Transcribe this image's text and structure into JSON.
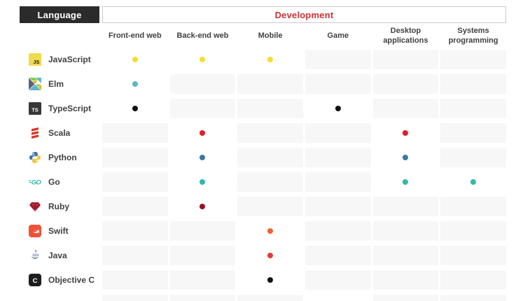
{
  "header": {
    "language_label": "Language",
    "development_label": "Development"
  },
  "colors": {
    "header_bg": "#2b2b2b",
    "header_text": "#ffffff",
    "development_text": "#cf3036",
    "development_border": "#cccccc",
    "cell_empty_bg": "#f7f7f7",
    "cell_active_bg": "#ffffff",
    "label_text": "#414042",
    "column_header_text": "#414042"
  },
  "chart_data": {
    "type": "table",
    "title": "Development",
    "row_header": "Language",
    "columns": [
      "Front-end web",
      "Back-end web",
      "Mobile",
      "Game",
      "Desktop applications",
      "Systems programming"
    ],
    "rows": [
      {
        "name": "JavaScript",
        "icon": "javascript-icon",
        "dot_color": "#f7dc30",
        "cells": [
          true,
          true,
          true,
          false,
          false,
          false
        ]
      },
      {
        "name": "Elm",
        "icon": "elm-icon",
        "dot_color": "#5fb4cb",
        "cells": [
          true,
          false,
          false,
          false,
          false,
          false
        ]
      },
      {
        "name": "TypeScript",
        "icon": "typescript-icon",
        "dot_color": "#111111",
        "cells": [
          true,
          false,
          false,
          true,
          false,
          false
        ]
      },
      {
        "name": "Scala",
        "icon": "scala-icon",
        "dot_color": "#e81c24",
        "cells": [
          false,
          true,
          false,
          false,
          true,
          false
        ]
      },
      {
        "name": "Python",
        "icon": "python-icon",
        "dot_color": "#3a78a9",
        "cells": [
          false,
          true,
          false,
          false,
          true,
          false
        ]
      },
      {
        "name": "Go",
        "icon": "go-icon",
        "dot_color": "#2ebaab",
        "cells": [
          false,
          true,
          false,
          false,
          true,
          true
        ]
      },
      {
        "name": "Ruby",
        "icon": "ruby-icon",
        "dot_color": "#9c1021",
        "cells": [
          false,
          true,
          false,
          false,
          false,
          false
        ]
      },
      {
        "name": "Swift",
        "icon": "swift-icon",
        "dot_color": "#f2612f",
        "cells": [
          false,
          false,
          true,
          false,
          false,
          false
        ]
      },
      {
        "name": "Java",
        "icon": "java-icon",
        "dot_color": "#e23b2e",
        "cells": [
          false,
          false,
          true,
          false,
          false,
          false
        ]
      },
      {
        "name": "Objective C",
        "icon": "objective-c-icon",
        "dot_color": "#111111",
        "cells": [
          false,
          false,
          true,
          false,
          false,
          false
        ]
      }
    ],
    "partial_row_cells": [
      false,
      false,
      false,
      true,
      false,
      false
    ]
  }
}
